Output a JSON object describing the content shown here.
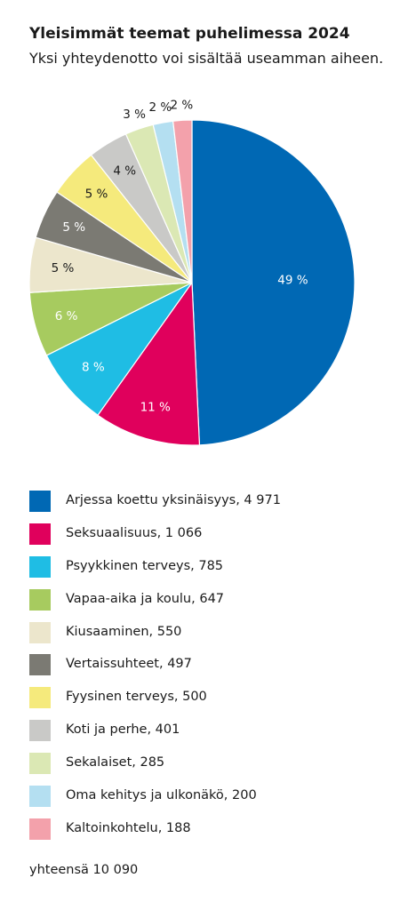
{
  "header": {
    "title": "Yleisimmät teemat puhelimessa 2024",
    "subtitle": "Yksi yhteydenotto voi sisältää useamman aiheen."
  },
  "chart_data": {
    "type": "pie",
    "title": "Yleisimmät teemat puhelimessa 2024",
    "subtitle": "Yksi yhteydenotto voi sisältää useamman aiheen.",
    "slices": [
      {
        "label": "Arjessa koettu yksinäisyys",
        "value": 4971,
        "value_text": "4 971",
        "pct_label": "49 %",
        "color": "#0068b4",
        "label_color": "#ffffff",
        "label_outside": false
      },
      {
        "label": "Seksuaalisuus",
        "value": 1066,
        "value_text": "1 066",
        "pct_label": "11 %",
        "color": "#e0005c",
        "label_color": "#ffffff",
        "label_outside": false
      },
      {
        "label": "Psyykkinen terveys",
        "value": 785,
        "value_text": "785",
        "pct_label": "8 %",
        "color": "#1fbde4",
        "label_color": "#ffffff",
        "label_outside": false
      },
      {
        "label": "Vapaa-aika ja koulu",
        "value": 647,
        "value_text": "647",
        "pct_label": "6 %",
        "color": "#a7cb5f",
        "label_color": "#ffffff",
        "label_outside": false
      },
      {
        "label": "Kiusaaminen",
        "value": 550,
        "value_text": "550",
        "pct_label": "5 %",
        "color": "#ece6cc",
        "label_color": "#1a1a1a",
        "label_outside": false
      },
      {
        "label": "Vertaissuhteet",
        "value": 497,
        "value_text": "497",
        "pct_label": "5 %",
        "color": "#7b7a73",
        "label_color": "#ffffff",
        "label_outside": false
      },
      {
        "label": "Fyysinen terveys",
        "value": 500,
        "value_text": "500",
        "pct_label": "5 %",
        "color": "#f5ea7c",
        "label_color": "#1a1a1a",
        "label_outside": false
      },
      {
        "label": "Koti ja perhe",
        "value": 401,
        "value_text": "401",
        "pct_label": "4 %",
        "color": "#c9c9c7",
        "label_color": "#1a1a1a",
        "label_outside": false
      },
      {
        "label": "Sekalaiset",
        "value": 285,
        "value_text": "285",
        "pct_label": "3 %",
        "color": "#dbe8b4",
        "label_color": "#1a1a1a",
        "label_outside": true
      },
      {
        "label": "Oma kehitys ja ulkonäkö",
        "value": 200,
        "value_text": "200",
        "pct_label": "2 %",
        "color": "#b4dff1",
        "label_color": "#1a1a1a",
        "label_outside": true
      },
      {
        "label": "Kaltoinkohtelu",
        "value": 188,
        "value_text": "188",
        "pct_label": "2 %",
        "color": "#f3a1ab",
        "label_color": "#1a1a1a",
        "label_outside": true
      }
    ],
    "legend_placement": "bottom"
  },
  "legend": {
    "items": [
      {
        "text": "Arjessa koettu yksinäisyys, 4 971"
      },
      {
        "text": "Seksuaalisuus, 1 066"
      },
      {
        "text": "Psyykkinen terveys, 785"
      },
      {
        "text": "Vapaa-aika ja koulu, 647"
      },
      {
        "text": "Kiusaaminen, 550"
      },
      {
        "text": "Vertaissuhteet, 497"
      },
      {
        "text": "Fyysinen terveys, 500"
      },
      {
        "text": "Koti ja perhe, 401"
      },
      {
        "text": "Sekalaiset, 285"
      },
      {
        "text": "Oma kehitys ja ulkonäkö, 200"
      },
      {
        "text": "Kaltoinkohtelu, 188"
      }
    ]
  },
  "footer": {
    "total": "yhteensä 10 090"
  }
}
